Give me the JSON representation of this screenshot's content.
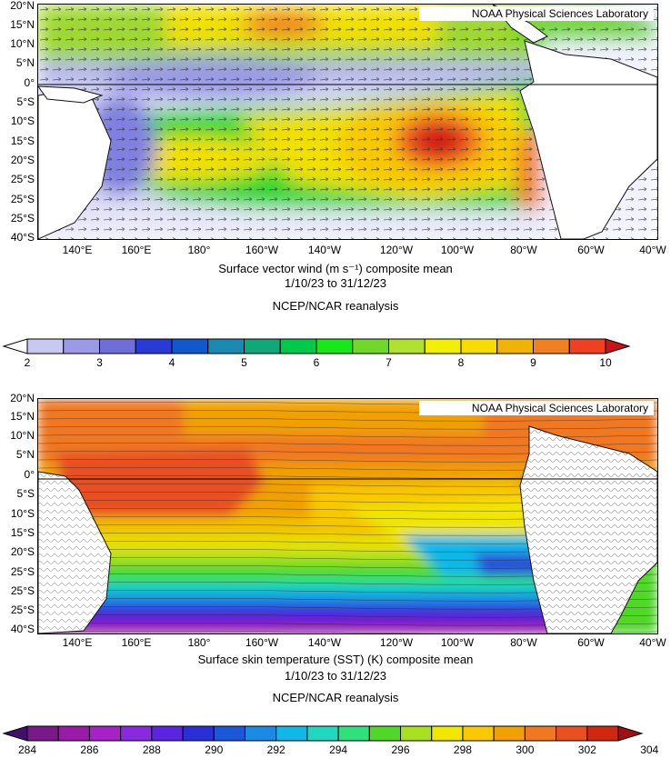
{
  "wind_panel": {
    "credit": "NOAA Physical Sciences Laboratory",
    "lat_labels": [
      "20°N",
      "15°N",
      "10°N",
      "5°N",
      "0°",
      "5°S",
      "10°S",
      "15°S",
      "20°S",
      "25°S",
      "25°S",
      "25°S",
      "40°S"
    ],
    "lon_labels": [
      "140°E",
      "160°E",
      "180°",
      "160°W",
      "140°W",
      "120°W",
      "100°W",
      "80°W",
      "60°W",
      "40°W"
    ],
    "title_line": "Surface vector wind (m s⁻¹) composite mean",
    "date_line": "1/10/23 to 31/12/23",
    "source_line": "NCEP/NCAR reanalysis",
    "colorbar": {
      "colors": [
        "#ffffff",
        "#c8c8f0",
        "#9a9ae6",
        "#6e6ed8",
        "#2a3ad8",
        "#1058d0",
        "#1a8ab0",
        "#10a878",
        "#00c84a",
        "#18e818",
        "#70d828",
        "#b0e030",
        "#f0f000",
        "#f8dc00",
        "#f0b400",
        "#f08020",
        "#f04020",
        "#c81414"
      ],
      "labels": [
        "2",
        "3",
        "4",
        "5",
        "6",
        "7",
        "8",
        "9",
        "10"
      ]
    }
  },
  "sst_panel": {
    "credit": "NOAA Physical Sciences Laboratory",
    "lat_labels": [
      "20°N",
      "15°N",
      "10°N",
      "5°N",
      "0°",
      "5°S",
      "10°S",
      "15°S",
      "20°S",
      "25°S",
      "25°S",
      "25°S",
      "40°S"
    ],
    "lon_labels": [
      "140°E",
      "160°E",
      "180°",
      "160°W",
      "140°W",
      "120°W",
      "100°W",
      "80°W",
      "60°W",
      "40°W"
    ],
    "title_line": "Surface skin temperature (SST) (K) composite mean",
    "date_line": "1/10/23 to 31/12/23",
    "source_line": "NCEP/NCAR reanalysis",
    "colorbar": {
      "colors": [
        "#40106a",
        "#7a1a8a",
        "#9a1aaa",
        "#a820c8",
        "#8a2ae0",
        "#5a24e0",
        "#2a30d8",
        "#1a58d8",
        "#1a8ae6",
        "#10b8e8",
        "#20d8c0",
        "#30e07a",
        "#50d828",
        "#a8e020",
        "#f0e600",
        "#f8c800",
        "#f0a000",
        "#f07820",
        "#e85020",
        "#d02810",
        "#a01010"
      ],
      "labels": [
        "284",
        "286",
        "288",
        "290",
        "292",
        "294",
        "296",
        "298",
        "300",
        "302",
        "304"
      ]
    }
  }
}
